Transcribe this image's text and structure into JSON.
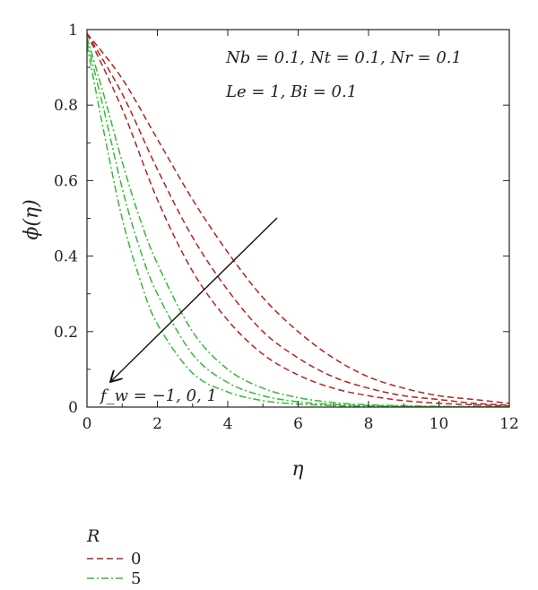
{
  "chart_data": {
    "type": "line",
    "xlabel": "η",
    "ylabel": "ϕ(η)",
    "xlim": [
      0,
      12
    ],
    "ylim": [
      0,
      1
    ],
    "x_ticks": [
      "0",
      "2",
      "4",
      "6",
      "8",
      "10",
      "12"
    ],
    "y_ticks": [
      "0",
      "0.2",
      "0.4",
      "0.6",
      "0.8",
      "1"
    ],
    "grid": false,
    "annotations": {
      "params_line1": "Nb = 0.1, Nt = 0.1, Nr = 0.1",
      "params_line2": "Le = 1, Bi = 0.1",
      "arrow_label": "f_w = −1, 0, 1"
    },
    "legend": {
      "title": "R",
      "placement": "bottom-left, below plot",
      "entries": [
        {
          "label": "0",
          "color": "#b22222",
          "dash": "dashed"
        },
        {
          "label": "5",
          "color": "#33bb33",
          "dash": "dash-dot"
        }
      ]
    },
    "series": [
      {
        "group": "R=0",
        "fw": -1,
        "color": "#b22222",
        "dash": "dashed",
        "x": [
          0,
          1,
          2,
          3,
          4,
          5,
          6,
          7,
          8,
          9,
          10,
          11,
          12
        ],
        "y": [
          0.99,
          0.87,
          0.71,
          0.55,
          0.41,
          0.29,
          0.2,
          0.13,
          0.08,
          0.05,
          0.03,
          0.02,
          0.01
        ]
      },
      {
        "group": "R=0",
        "fw": 0,
        "color": "#b22222",
        "dash": "dashed",
        "x": [
          0,
          1,
          2,
          3,
          4,
          5,
          6,
          7,
          8,
          9,
          10,
          11,
          12
        ],
        "y": [
          0.99,
          0.83,
          0.63,
          0.45,
          0.31,
          0.2,
          0.13,
          0.08,
          0.05,
          0.03,
          0.02,
          0.01,
          0.005
        ]
      },
      {
        "group": "R=0",
        "fw": 1,
        "color": "#b22222",
        "dash": "dashed",
        "x": [
          0,
          1,
          2,
          3,
          4,
          5,
          6,
          7,
          8,
          9,
          10,
          11,
          12
        ],
        "y": [
          0.99,
          0.79,
          0.55,
          0.36,
          0.23,
          0.14,
          0.085,
          0.05,
          0.03,
          0.017,
          0.01,
          0.006,
          0.003
        ]
      },
      {
        "group": "R=5",
        "fw": -1,
        "color": "#33bb33",
        "dash": "dash-dot",
        "x": [
          0,
          0.5,
          1,
          1.5,
          2,
          3,
          4,
          5,
          6,
          7,
          8,
          10,
          12
        ],
        "y": [
          0.98,
          0.82,
          0.65,
          0.5,
          0.38,
          0.2,
          0.1,
          0.05,
          0.025,
          0.012,
          0.006,
          0.002,
          0.001
        ]
      },
      {
        "group": "R=5",
        "fw": 0,
        "color": "#33bb33",
        "dash": "dash-dot",
        "x": [
          0,
          0.5,
          1,
          1.5,
          2,
          3,
          4,
          5,
          6,
          7,
          8,
          10,
          12
        ],
        "y": [
          0.97,
          0.78,
          0.58,
          0.42,
          0.3,
          0.14,
          0.065,
          0.03,
          0.014,
          0.007,
          0.004,
          0.001,
          0.0005
        ]
      },
      {
        "group": "R=5",
        "fw": 1,
        "color": "#33bb33",
        "dash": "dash-dot",
        "x": [
          0,
          0.5,
          1,
          1.5,
          2,
          3,
          4,
          5,
          6,
          7,
          8,
          10,
          12
        ],
        "y": [
          0.96,
          0.72,
          0.5,
          0.34,
          0.22,
          0.09,
          0.04,
          0.017,
          0.008,
          0.004,
          0.002,
          0.0005,
          0.0002
        ]
      }
    ]
  }
}
